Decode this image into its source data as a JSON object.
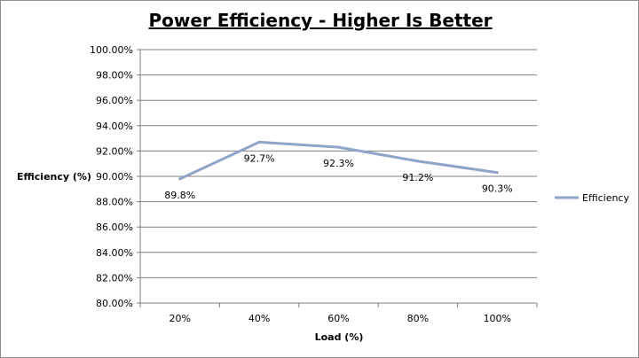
{
  "chart_data": {
    "type": "line",
    "title": "Power Efficiency - Higher Is Better",
    "xlabel": "Load (%)",
    "ylabel": "Efficiency  (%)",
    "categories": [
      "20%",
      "40%",
      "60%",
      "80%",
      "100%"
    ],
    "series": [
      {
        "name": "Efficiency",
        "values": [
          89.8,
          92.7,
          92.3,
          91.2,
          90.3
        ],
        "labels": [
          "89.8%",
          "92.7%",
          "92.3%",
          "91.2%",
          "90.3%"
        ],
        "color": "#8ea4c8"
      }
    ],
    "ylim": [
      80,
      100
    ],
    "y_ticks": [
      "80.00%",
      "82.00%",
      "84.00%",
      "86.00%",
      "88.00%",
      "90.00%",
      "92.00%",
      "94.00%",
      "96.00%",
      "98.00%",
      "100.00%"
    ],
    "grid": true,
    "legend": "right",
    "colors": {
      "gridline": "#7f7f7f",
      "axis": "#7f7f7f"
    }
  }
}
